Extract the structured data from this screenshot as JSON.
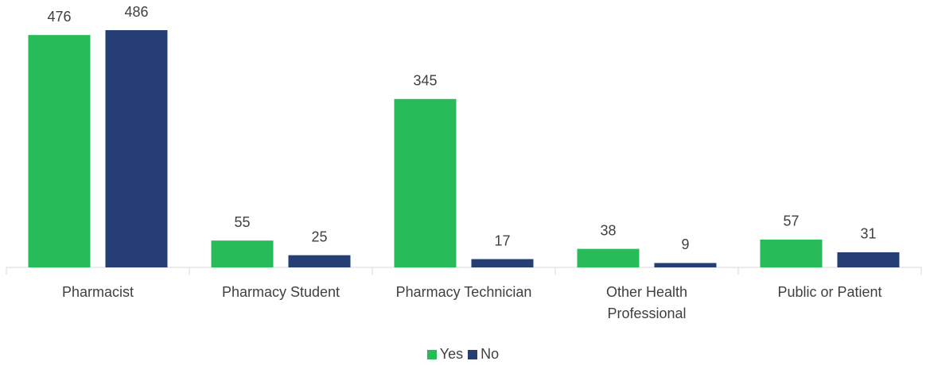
{
  "chart_data": {
    "type": "bar",
    "categories": [
      "Pharmacist",
      "Pharmacy Student",
      "Pharmacy Technician",
      "Other Health Professional",
      "Public or Patient"
    ],
    "series": [
      {
        "name": "Yes",
        "color": "#27bb5a",
        "values": [
          476,
          55,
          345,
          38,
          57
        ]
      },
      {
        "name": "No",
        "color": "#253f75",
        "values": [
          486,
          25,
          17,
          9,
          31
        ]
      }
    ],
    "legend": "bottom"
  }
}
